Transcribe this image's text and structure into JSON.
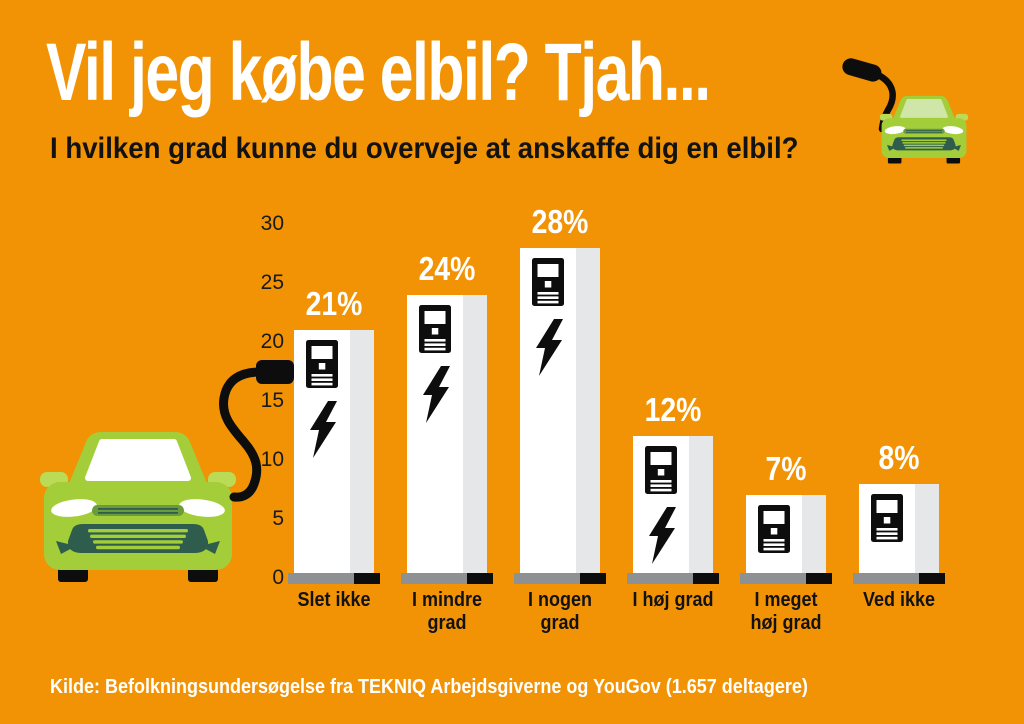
{
  "header": {
    "title": "Vil jeg købe elbil? Tjah...",
    "subtitle": "I hvilken grad kunne du overveje at anskaffe dig en elbil?"
  },
  "source": {
    "text": "Kilde: Befolkningsundersøgelse fra TEKNIQ Arbejdsgiverne og YouGov (1.657 deltagere)"
  },
  "chart_data": {
    "type": "bar",
    "title": "Vil jeg købe elbil? Tjah...",
    "question": "I hvilken grad kunne du overveje at anskaffe dig en elbil?",
    "categories": [
      "Slet ikke",
      "I mindre\ngrad",
      "I nogen\ngrad",
      "I høj grad",
      "I meget\nhøj grad",
      "Ved ikke"
    ],
    "values": [
      21,
      24,
      28,
      12,
      7,
      8
    ],
    "value_labels": [
      "21%",
      "24%",
      "28%",
      "12%",
      "7%",
      "8%"
    ],
    "unit": "%",
    "ylim": [
      0,
      30
    ],
    "yticks": [
      30,
      25,
      20,
      15,
      10,
      5,
      0
    ],
    "grid": false,
    "legend": "none",
    "xlabel": "",
    "ylabel": "",
    "bolt_icon_on_bars": [
      true,
      true,
      true,
      true,
      false,
      false
    ],
    "source": "Kilde: Befolkningsundersøgelse fra TEKNIQ Arbejdsgiverne og YouGov (1.657 deltagere)"
  },
  "icons": {
    "charging_station": "black EV-charger kiosk with white screen, card slot and vents",
    "lightning_bolt": "⚡ black lightning bolt",
    "car_front": "green electric car seen from the front",
    "charging_cable": "curved black charging cable with plug"
  },
  "colors": {
    "background": "#F19305",
    "bar_front": "#FFFFFF",
    "bar_side": "#E6E7E8",
    "base_gray": "#8E9193",
    "base_black": "#0D0D0D",
    "car_green": "#A4CE39",
    "car_detail_green": "#2F5D4D",
    "car_strip_green": "#6A9C3C",
    "car_mirror_green": "#BBDA55",
    "text_black": "#121212",
    "text_white": "#FFFFFF"
  }
}
